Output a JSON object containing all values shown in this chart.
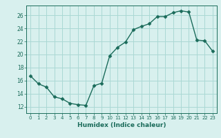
{
  "x": [
    0,
    1,
    2,
    3,
    4,
    5,
    6,
    7,
    8,
    9,
    10,
    11,
    12,
    13,
    14,
    15,
    16,
    17,
    18,
    19,
    20,
    21,
    22,
    23
  ],
  "y": [
    16.7,
    15.5,
    15.0,
    13.5,
    13.2,
    12.5,
    12.3,
    12.2,
    15.2,
    15.6,
    19.8,
    21.1,
    21.9,
    23.8,
    24.3,
    24.7,
    25.8,
    25.8,
    26.4,
    26.7,
    26.5,
    22.2,
    22.1,
    20.5
  ],
  "xlabel": "Humidex (Indice chaleur)",
  "ylim": [
    11,
    27.5
  ],
  "xlim": [
    -0.5,
    23.5
  ],
  "yticks": [
    12,
    14,
    16,
    18,
    20,
    22,
    24,
    26
  ],
  "xticks": [
    0,
    1,
    2,
    3,
    4,
    5,
    6,
    7,
    8,
    9,
    10,
    11,
    12,
    13,
    14,
    15,
    16,
    17,
    18,
    19,
    20,
    21,
    22,
    23
  ],
  "line_color": "#1a6b5a",
  "marker_color": "#1a6b5a",
  "bg_color": "#d8f0ee",
  "grid_color": "#aad8d4",
  "label_color": "#1a6b5a",
  "tick_color": "#1a6b5a",
  "spine_color": "#1a6b5a"
}
